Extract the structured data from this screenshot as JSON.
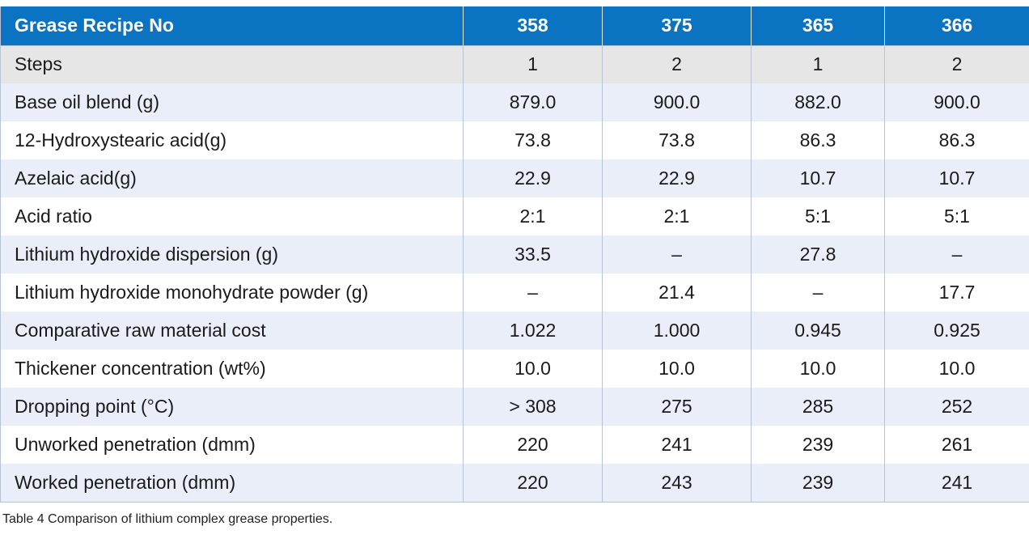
{
  "table": {
    "headers": [
      "Grease Recipe No",
      "358",
      "375",
      "365",
      "366"
    ],
    "rows": [
      {
        "label": "Steps",
        "values": [
          "1",
          "2",
          "1",
          "2"
        ]
      },
      {
        "label": "Base oil blend (g)",
        "values": [
          "879.0",
          "900.0",
          "882.0",
          "900.0"
        ]
      },
      {
        "label": "12-Hydroxystearic acid(g)",
        "values": [
          "73.8",
          "73.8",
          "86.3",
          "86.3"
        ]
      },
      {
        "label": "Azelaic acid(g)",
        "values": [
          "22.9",
          "22.9",
          "10.7",
          "10.7"
        ]
      },
      {
        "label": "Acid ratio",
        "values": [
          "2:1",
          "2:1",
          "5:1",
          "5:1"
        ]
      },
      {
        "label": "Lithium hydroxide dispersion (g)",
        "values": [
          "33.5",
          "–",
          "27.8",
          "–"
        ]
      },
      {
        "label": "Lithium hydroxide monohydrate powder (g)",
        "values": [
          "–",
          "21.4",
          "–",
          "17.7"
        ]
      },
      {
        "label": "Comparative raw material cost",
        "values": [
          "1.022",
          "1.000",
          "0.945",
          "0.925"
        ]
      },
      {
        "label": "Thickener concentration (wt%)",
        "values": [
          "10.0",
          "10.0",
          "10.0",
          "10.0"
        ]
      },
      {
        "label": "Dropping point (°C)",
        "values": [
          "> 308",
          "275",
          "285",
          "252"
        ]
      },
      {
        "label": "Unworked penetration (dmm)",
        "values": [
          "220",
          "241",
          "239",
          "261"
        ]
      },
      {
        "label": "Worked penetration (dmm)",
        "values": [
          "220",
          "243",
          "239",
          "241"
        ]
      }
    ]
  },
  "caption": "Table 4 Comparison of lithium complex grease properties.",
  "colors": {
    "header_bg": "#0a74c2",
    "header_text": "#ffffff",
    "steps_row_bg": "#e6e6e6",
    "alt_row_bg": "#e9eef8",
    "plain_row_bg": "#ffffff"
  }
}
